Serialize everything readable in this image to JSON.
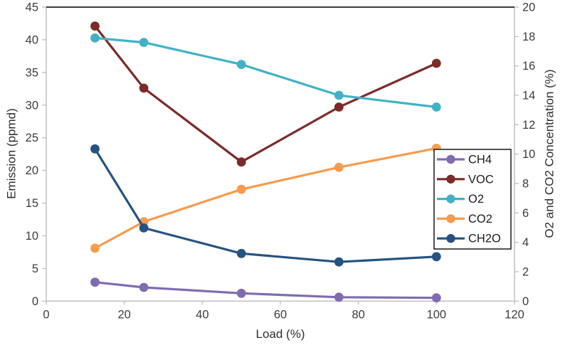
{
  "chart_data": {
    "type": "line",
    "title": "",
    "xlabel": "Load (%)",
    "ylabel_left": "Emission (ppmd)",
    "ylabel_right": "O2 and CO2 Concentration (%)",
    "xlim": [
      0,
      120
    ],
    "xticks": [
      0,
      20,
      40,
      60,
      80,
      100,
      120
    ],
    "ylim_left": [
      0,
      45
    ],
    "yticks_left": [
      0,
      5,
      10,
      15,
      20,
      25,
      30,
      35,
      40,
      45
    ],
    "ylim_right": [
      0,
      20
    ],
    "yticks_right": [
      0,
      2,
      4,
      6,
      8,
      10,
      12,
      14,
      16,
      18,
      20
    ],
    "grid": false,
    "marker": "circle",
    "legend_position": "right-middle",
    "x": [
      12.5,
      25,
      50,
      75,
      100
    ],
    "series": [
      {
        "name": "CH4",
        "axis": "left",
        "color": "#816bb0",
        "values": [
          2.9,
          2.1,
          1.2,
          0.6,
          0.5
        ]
      },
      {
        "name": "VOC",
        "axis": "left",
        "color": "#7c2b28",
        "values": [
          42.1,
          32.6,
          21.3,
          29.7,
          36.4
        ]
      },
      {
        "name": "O2",
        "axis": "right",
        "color": "#41b2c6",
        "values": [
          17.9,
          17.6,
          16.1,
          14.0,
          13.2
        ]
      },
      {
        "name": "CO2",
        "axis": "right",
        "color": "#f79b4d",
        "values": [
          3.6,
          5.4,
          7.6,
          9.1,
          10.4
        ]
      },
      {
        "name": "CH2O",
        "axis": "left",
        "color": "#255381",
        "values": [
          23.3,
          11.2,
          7.3,
          6.0,
          6.8
        ]
      }
    ],
    "colors": {
      "spine_top": "#3c3c3c",
      "spine_light": "#c3c3c3",
      "tick_label": "#3d3d3d",
      "legend_border": "#262626",
      "background": "#ffffff"
    }
  }
}
